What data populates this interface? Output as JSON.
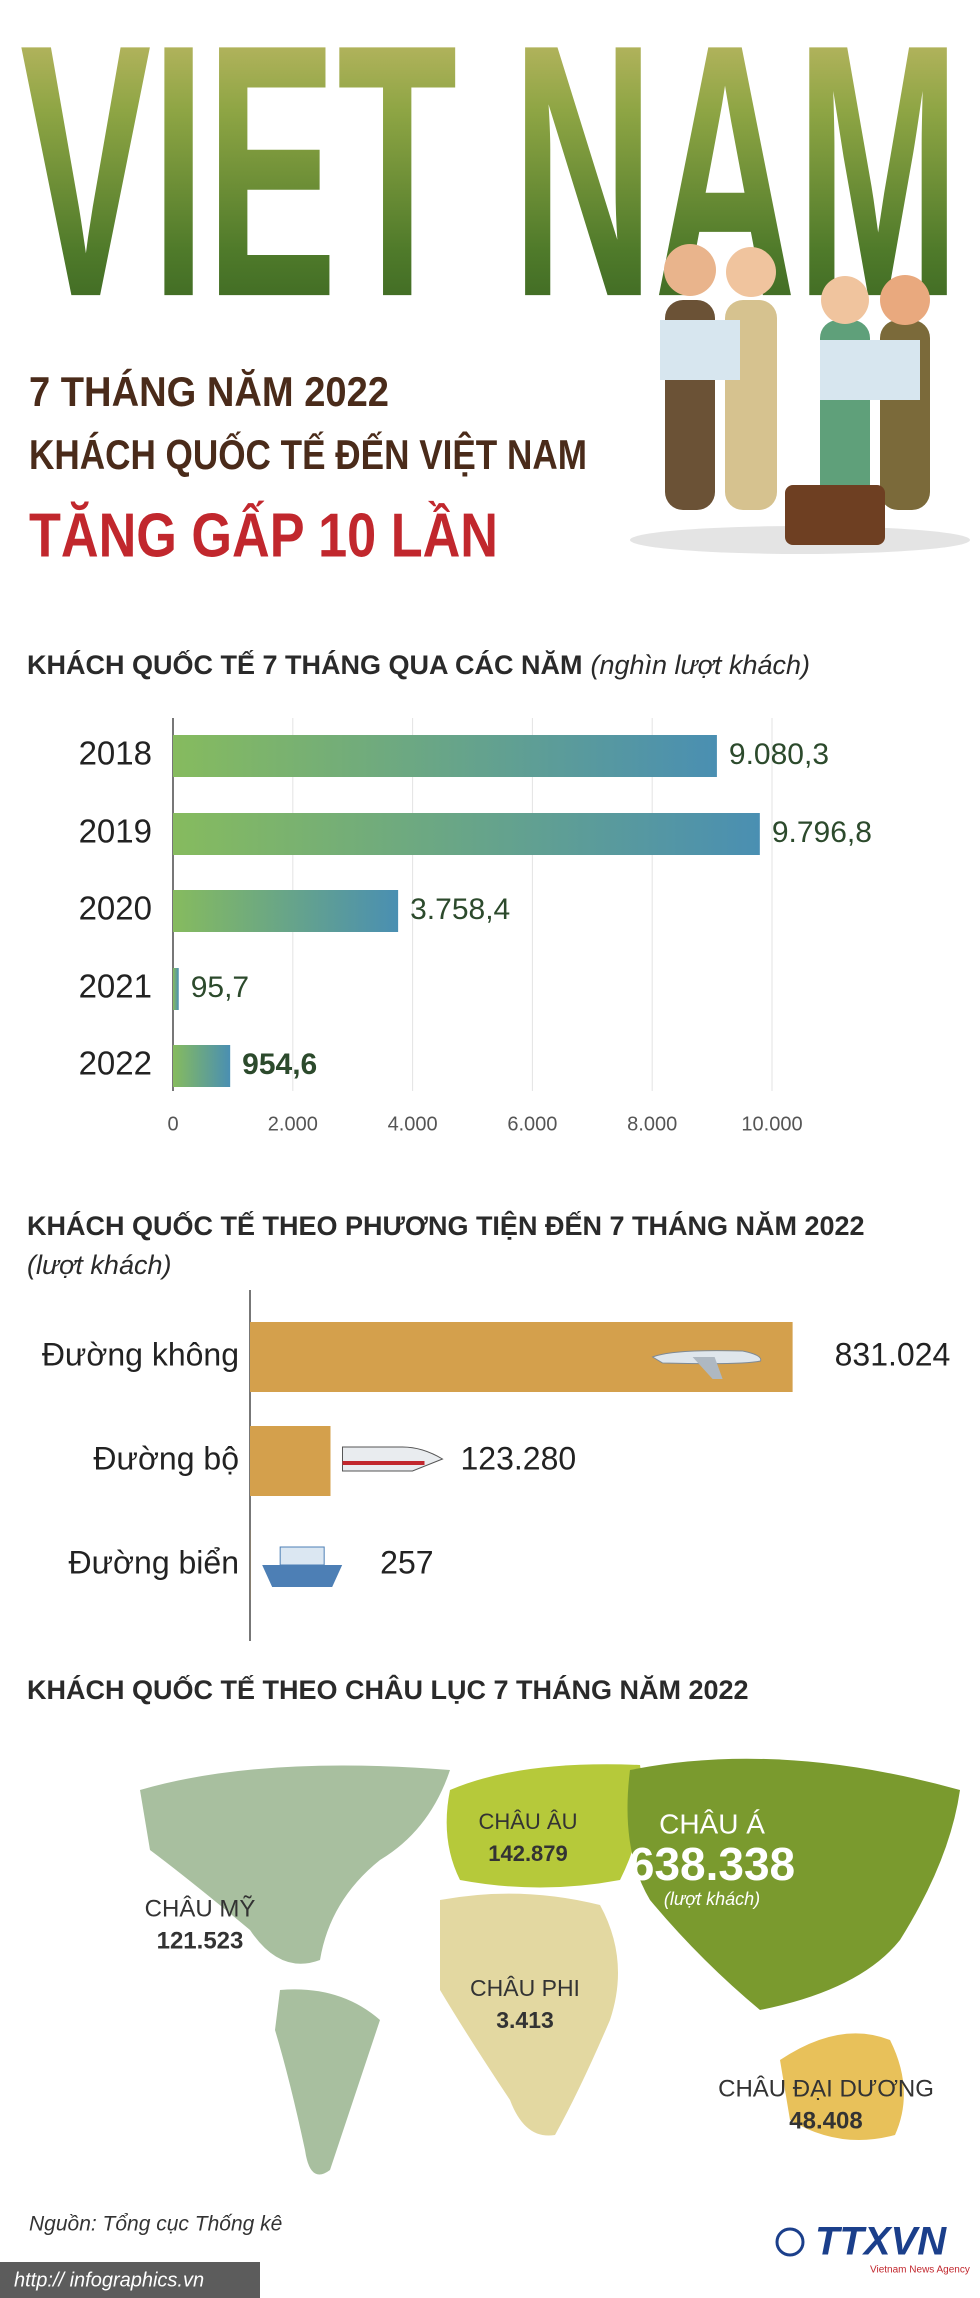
{
  "header": {
    "title": "VIET NAM",
    "line1": "7 THÁNG NĂM 2022",
    "line2": "KHÁCH QUỐC TẾ ĐẾN VIỆT NAM",
    "line3": "TĂNG GẤP 10 LẦN"
  },
  "chart_data": [
    {
      "type": "hbar",
      "title": "KHÁCH QUỐC TẾ 7 THÁNG QUA CÁC NĂM",
      "subtitle": "(nghìn lượt khách)",
      "categories": [
        "2018",
        "2019",
        "2020",
        "2021",
        "2022"
      ],
      "values": [
        9080.3,
        9796.8,
        3758.4,
        95.7,
        954.6
      ],
      "value_labels": [
        "9.080,3",
        "9.796,8",
        "3.758,4",
        "95,7",
        "954,6"
      ],
      "colors": [
        "#86bb5e",
        "#4a8fb2"
      ],
      "xlim": [
        0,
        10000
      ],
      "xticks": [
        0,
        {
          "value": 2000,
          "label": "2.000"
        },
        {
          "value": 4000,
          "label": "4.000"
        },
        {
          "value": 6000,
          "label": "6.000"
        },
        {
          "value": 8000,
          "label": "8.000"
        },
        {
          "value": 10000,
          "label": "10.000"
        }
      ],
      "grid": true
    },
    {
      "type": "hbar",
      "title": "KHÁCH QUỐC TẾ THEO PHƯƠNG TIỆN ĐẾN 7 THÁNG NĂM 2022",
      "subtitle": "(lượt khách)",
      "categories": [
        "Đường không",
        "Đường bộ",
        "Đường biển"
      ],
      "values": [
        831024,
        123280,
        257
      ],
      "value_labels": [
        "831.024",
        "123.280",
        "257"
      ],
      "colors": [
        "#d4a04c",
        "#d4a04c"
      ],
      "xlim": [
        0,
        850000
      ],
      "grid": false
    }
  ],
  "map": {
    "title": "KHÁCH QUỐC TẾ THEO CHÂU LỤC 7 THÁNG NĂM 2022",
    "regions": [
      {
        "name": "CHÂU MỸ",
        "value": "121.523"
      },
      {
        "name": "CHÂU ÂU",
        "value": "142.879"
      },
      {
        "name": "CHÂU Á",
        "value": "638.338",
        "unit": "(lượt khách)"
      },
      {
        "name": "CHÂU PHI",
        "value": "3.413"
      },
      {
        "name": "CHÂU ĐẠI DƯƠNG",
        "value": "48.408"
      }
    ]
  },
  "footer": {
    "source": "Nguồn: Tổng cục Thống kê",
    "url": "http:// infographics.vn",
    "logo": "TTXVN",
    "logo_sub": "Vietnam News Agency"
  }
}
